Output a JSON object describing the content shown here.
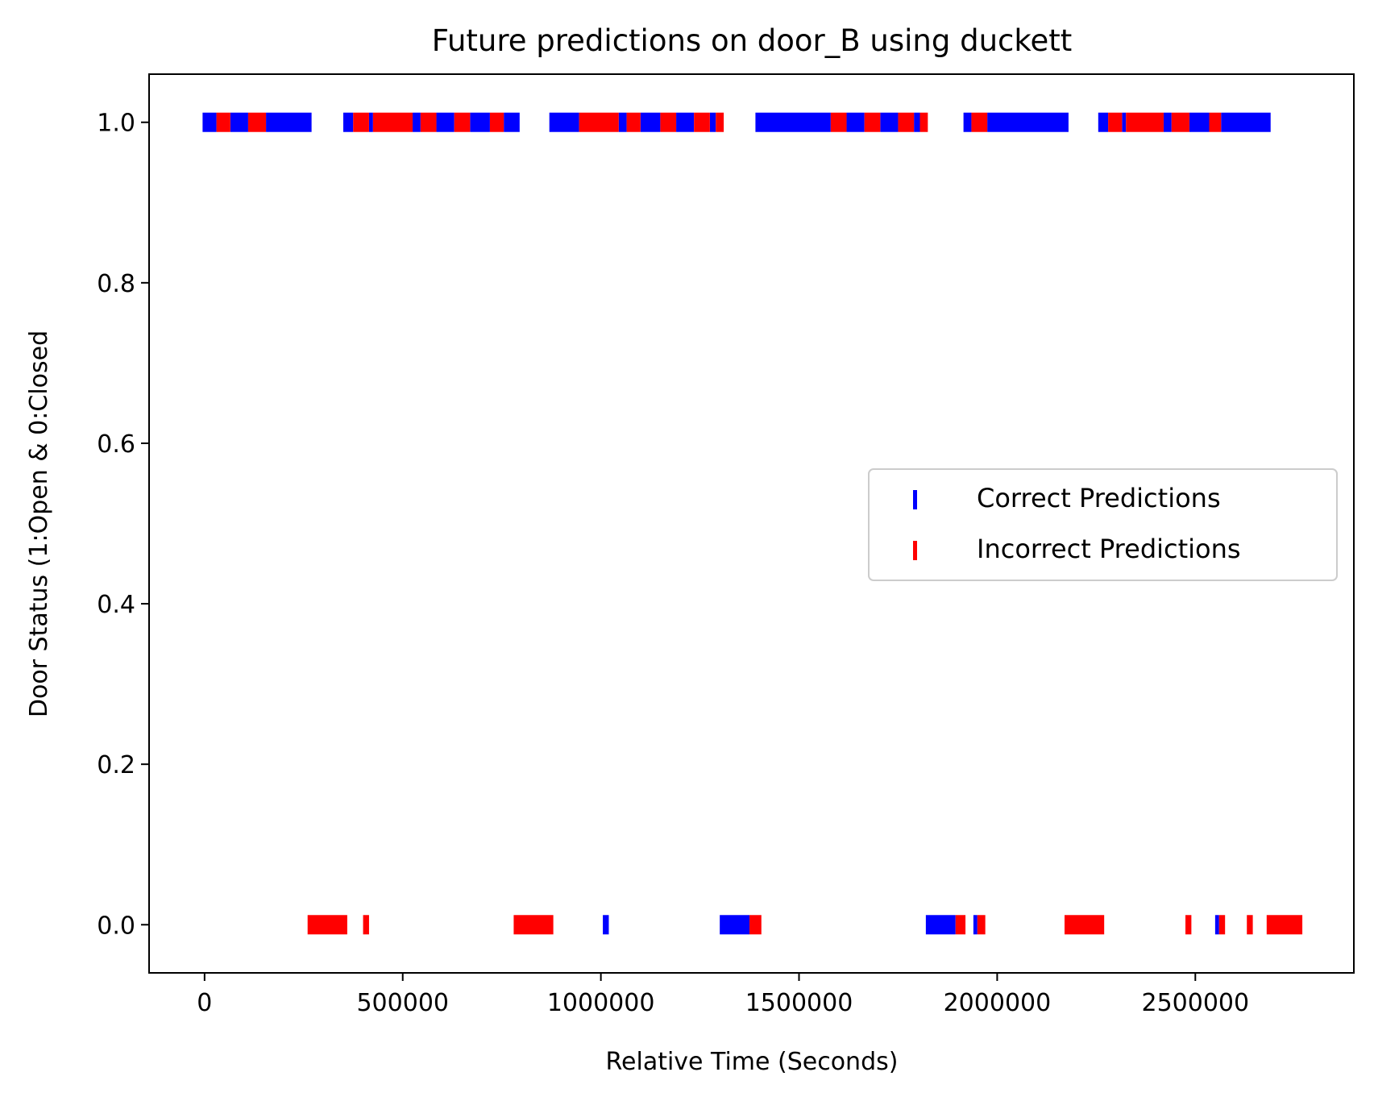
{
  "chart_data": {
    "type": "scatter",
    "title": "Future predictions on door_B using duckett",
    "xlabel": "Relative Time (Seconds)",
    "ylabel": "Door Status (1:Open & 0:Closed",
    "xlim": [
      -140000,
      2900000
    ],
    "ylim": [
      -0.06,
      1.06
    ],
    "xticks": [
      0,
      500000,
      1000000,
      1500000,
      2000000,
      2500000
    ],
    "xtick_labels": [
      "0",
      "500000",
      "1000000",
      "1500000",
      "2000000",
      "2500000"
    ],
    "yticks": [
      0.0,
      0.2,
      0.4,
      0.6,
      0.8,
      1.0
    ],
    "ytick_labels": [
      "0.0",
      "0.2",
      "0.4",
      "0.6",
      "0.8",
      "1.0"
    ],
    "grid": false,
    "legend_position": "center-right",
    "series": [
      {
        "name": "Correct Predictions",
        "color": "#0000ff",
        "marker": "|",
        "segments": [
          {
            "y": 1,
            "x": [
              -5000,
              30000
            ]
          },
          {
            "y": 1,
            "x": [
              65000,
              110000
            ]
          },
          {
            "y": 1,
            "x": [
              155000,
              270000
            ]
          },
          {
            "y": 1,
            "x": [
              350000,
              375000
            ]
          },
          {
            "y": 1,
            "x": [
              415000,
              425000
            ]
          },
          {
            "y": 1,
            "x": [
              525000,
              545000
            ]
          },
          {
            "y": 1,
            "x": [
              585000,
              630000
            ]
          },
          {
            "y": 1,
            "x": [
              670000,
              720000
            ]
          },
          {
            "y": 1,
            "x": [
              755000,
              795000
            ]
          },
          {
            "y": 1,
            "x": [
              870000,
              945000
            ]
          },
          {
            "y": 1,
            "x": [
              1045000,
              1065000
            ]
          },
          {
            "y": 1,
            "x": [
              1100000,
              1150000
            ]
          },
          {
            "y": 1,
            "x": [
              1190000,
              1235000
            ]
          },
          {
            "y": 1,
            "x": [
              1275000,
              1290000
            ]
          },
          {
            "y": 1,
            "x": [
              1390000,
              1580000
            ]
          },
          {
            "y": 1,
            "x": [
              1620000,
              1665000
            ]
          },
          {
            "y": 1,
            "x": [
              1705000,
              1750000
            ]
          },
          {
            "y": 1,
            "x": [
              1790000,
              1805000
            ]
          },
          {
            "y": 1,
            "x": [
              1915000,
              1935000
            ]
          },
          {
            "y": 1,
            "x": [
              1975000,
              2180000
            ]
          },
          {
            "y": 1,
            "x": [
              2255000,
              2280000
            ]
          },
          {
            "y": 1,
            "x": [
              2315000,
              2325000
            ]
          },
          {
            "y": 1,
            "x": [
              2420000,
              2440000
            ]
          },
          {
            "y": 1,
            "x": [
              2485000,
              2535000
            ]
          },
          {
            "y": 1,
            "x": [
              2565000,
              2690000
            ]
          },
          {
            "y": 0,
            "x": [
              1005000,
              1020000
            ]
          },
          {
            "y": 0,
            "x": [
              1300000,
              1375000
            ]
          },
          {
            "y": 0,
            "x": [
              1820000,
              1895000
            ]
          },
          {
            "y": 0,
            "x": [
              1940000,
              1950000
            ]
          },
          {
            "y": 0,
            "x": [
              2550000,
              2560000
            ]
          }
        ]
      },
      {
        "name": "Incorrect Predictions",
        "color": "#ff0000",
        "marker": "|",
        "segments": [
          {
            "y": 1,
            "x": [
              30000,
              65000
            ]
          },
          {
            "y": 1,
            "x": [
              110000,
              155000
            ]
          },
          {
            "y": 1,
            "x": [
              375000,
              415000
            ]
          },
          {
            "y": 1,
            "x": [
              425000,
              525000
            ]
          },
          {
            "y": 1,
            "x": [
              545000,
              585000
            ]
          },
          {
            "y": 1,
            "x": [
              630000,
              670000
            ]
          },
          {
            "y": 1,
            "x": [
              720000,
              755000
            ]
          },
          {
            "y": 1,
            "x": [
              945000,
              1045000
            ]
          },
          {
            "y": 1,
            "x": [
              1065000,
              1100000
            ]
          },
          {
            "y": 1,
            "x": [
              1150000,
              1190000
            ]
          },
          {
            "y": 1,
            "x": [
              1235000,
              1275000
            ]
          },
          {
            "y": 1,
            "x": [
              1290000,
              1310000
            ]
          },
          {
            "y": 1,
            "x": [
              1580000,
              1620000
            ]
          },
          {
            "y": 1,
            "x": [
              1665000,
              1705000
            ]
          },
          {
            "y": 1,
            "x": [
              1750000,
              1790000
            ]
          },
          {
            "y": 1,
            "x": [
              1805000,
              1825000
            ]
          },
          {
            "y": 1,
            "x": [
              1935000,
              1975000
            ]
          },
          {
            "y": 1,
            "x": [
              2280000,
              2315000
            ]
          },
          {
            "y": 1,
            "x": [
              2325000,
              2420000
            ]
          },
          {
            "y": 1,
            "x": [
              2440000,
              2485000
            ]
          },
          {
            "y": 1,
            "x": [
              2535000,
              2565000
            ]
          },
          {
            "y": 0,
            "x": [
              260000,
              360000
            ]
          },
          {
            "y": 0,
            "x": [
              400000,
              415000
            ]
          },
          {
            "y": 0,
            "x": [
              780000,
              880000
            ]
          },
          {
            "y": 0,
            "x": [
              1375000,
              1405000
            ]
          },
          {
            "y": 0,
            "x": [
              1895000,
              1920000
            ]
          },
          {
            "y": 0,
            "x": [
              1950000,
              1970000
            ]
          },
          {
            "y": 0,
            "x": [
              2170000,
              2270000
            ]
          },
          {
            "y": 0,
            "x": [
              2475000,
              2490000
            ]
          },
          {
            "y": 0,
            "x": [
              2560000,
              2575000
            ]
          },
          {
            "y": 0,
            "x": [
              2630000,
              2645000
            ]
          },
          {
            "y": 0,
            "x": [
              2680000,
              2770000
            ]
          }
        ]
      }
    ]
  }
}
